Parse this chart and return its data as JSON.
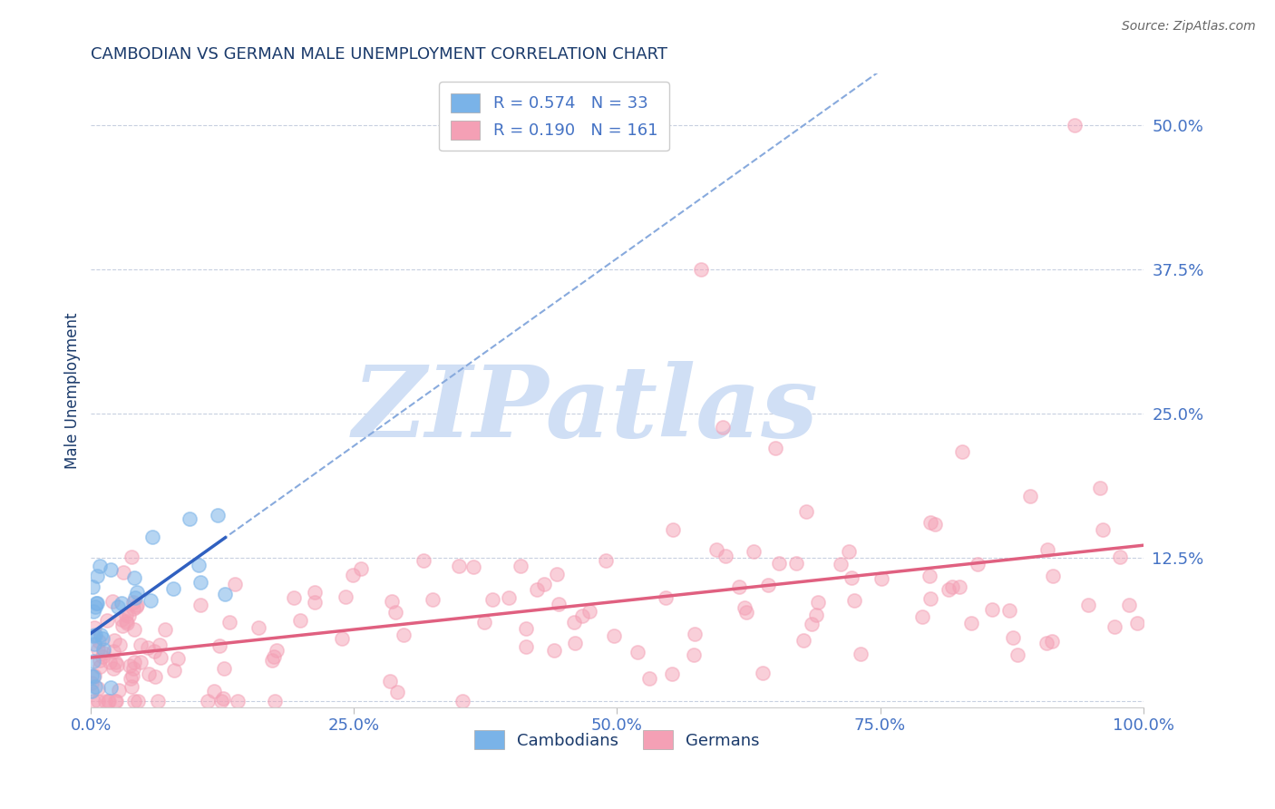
{
  "title": "CAMBODIAN VS GERMAN MALE UNEMPLOYMENT CORRELATION CHART",
  "source": "Source: ZipAtlas.com",
  "ylabel": "Male Unemployment",
  "xlim": [
    0,
    1
  ],
  "ylim": [
    -0.005,
    0.545
  ],
  "yticks": [
    0.0,
    0.125,
    0.25,
    0.375,
    0.5
  ],
  "ytick_labels": [
    "",
    "12.5%",
    "25.0%",
    "37.5%",
    "50.0%"
  ],
  "xticks": [
    0.0,
    0.25,
    0.5,
    0.75,
    1.0
  ],
  "xtick_labels": [
    "0.0%",
    "25.0%",
    "50.0%",
    "75.0%",
    "100.0%"
  ],
  "legend_label1": "Cambodians",
  "legend_label2": "Germans",
  "legend_R1": "R = 0.574",
  "legend_N1": "N = 33",
  "legend_R2": "R = 0.190",
  "legend_N2": "N = 161",
  "cambodian_color": "#7ab3e8",
  "german_color": "#f4a0b5",
  "trend_cambodian_solid_color": "#3060c0",
  "trend_cambodian_dashed_color": "#88aadd",
  "trend_german_color": "#e06080",
  "title_color": "#1a3a6b",
  "tick_color": "#4472c4",
  "axis_label_color": "#1a3a6b",
  "watermark_color": "#d0dff5",
  "watermark_text": "ZIPatlas",
  "background_color": "#ffffff",
  "grid_color": "#c8d0e0",
  "source_color": "#666666"
}
